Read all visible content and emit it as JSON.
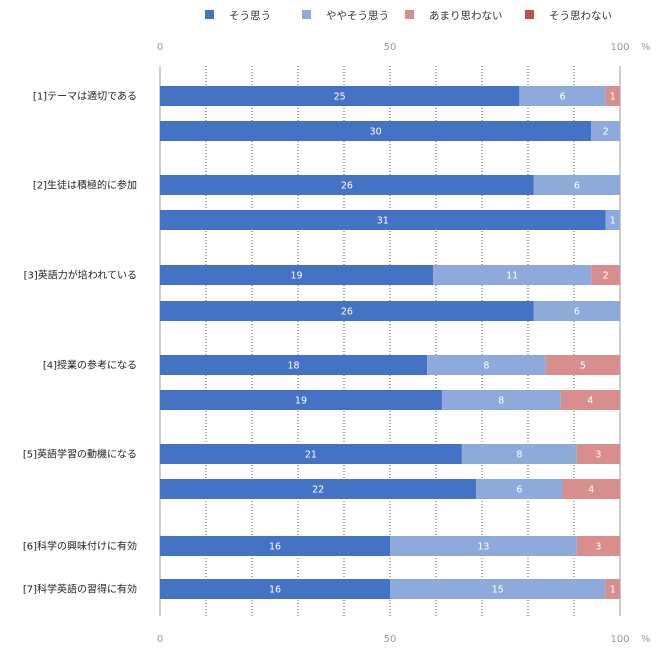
{
  "chart_data": {
    "type": "bar",
    "orientation": "horizontal",
    "stacked": true,
    "xlim": [
      0,
      100
    ],
    "x_unit": "%",
    "x_ticks": [
      "0",
      "50",
      "100"
    ],
    "grid": true,
    "legend_position": "top-right",
    "series": [
      {
        "name": "そう思う",
        "color": "#4472c4"
      },
      {
        "name": "ややそう思う",
        "color": "#8eaadb"
      },
      {
        "name": "あまり思わない",
        "color": "#d98e8e"
      },
      {
        "name": "そう思わない",
        "color": "#c0504d"
      }
    ],
    "rows": [
      {
        "label": "[1]テーマは適切である",
        "values": [
          25,
          6,
          1,
          0
        ]
      },
      {
        "label": "",
        "values": [
          30,
          2,
          0,
          0
        ]
      },
      {
        "label": "[2]生徒は積極的に参加",
        "values": [
          26,
          6,
          0,
          0
        ]
      },
      {
        "label": "",
        "values": [
          31,
          1,
          0,
          0
        ]
      },
      {
        "label": "[3]英語力が培われている",
        "values": [
          19,
          11,
          2,
          0
        ]
      },
      {
        "label": "",
        "values": [
          26,
          6,
          0,
          0
        ]
      },
      {
        "label": "[4]授業の参考になる",
        "values": [
          18,
          8,
          5,
          0
        ]
      },
      {
        "label": "",
        "values": [
          19,
          8,
          4,
          0
        ]
      },
      {
        "label": "[5]英語学習の動機になる",
        "values": [
          21,
          8,
          3,
          0
        ]
      },
      {
        "label": "",
        "values": [
          22,
          6,
          4,
          0
        ]
      },
      {
        "label": "[6]科学の興味付けに有効",
        "values": [
          16,
          13,
          3,
          0
        ]
      },
      {
        "label": "[7]科学英語の習得に有効",
        "values": [
          16,
          15,
          1,
          0
        ]
      }
    ]
  }
}
